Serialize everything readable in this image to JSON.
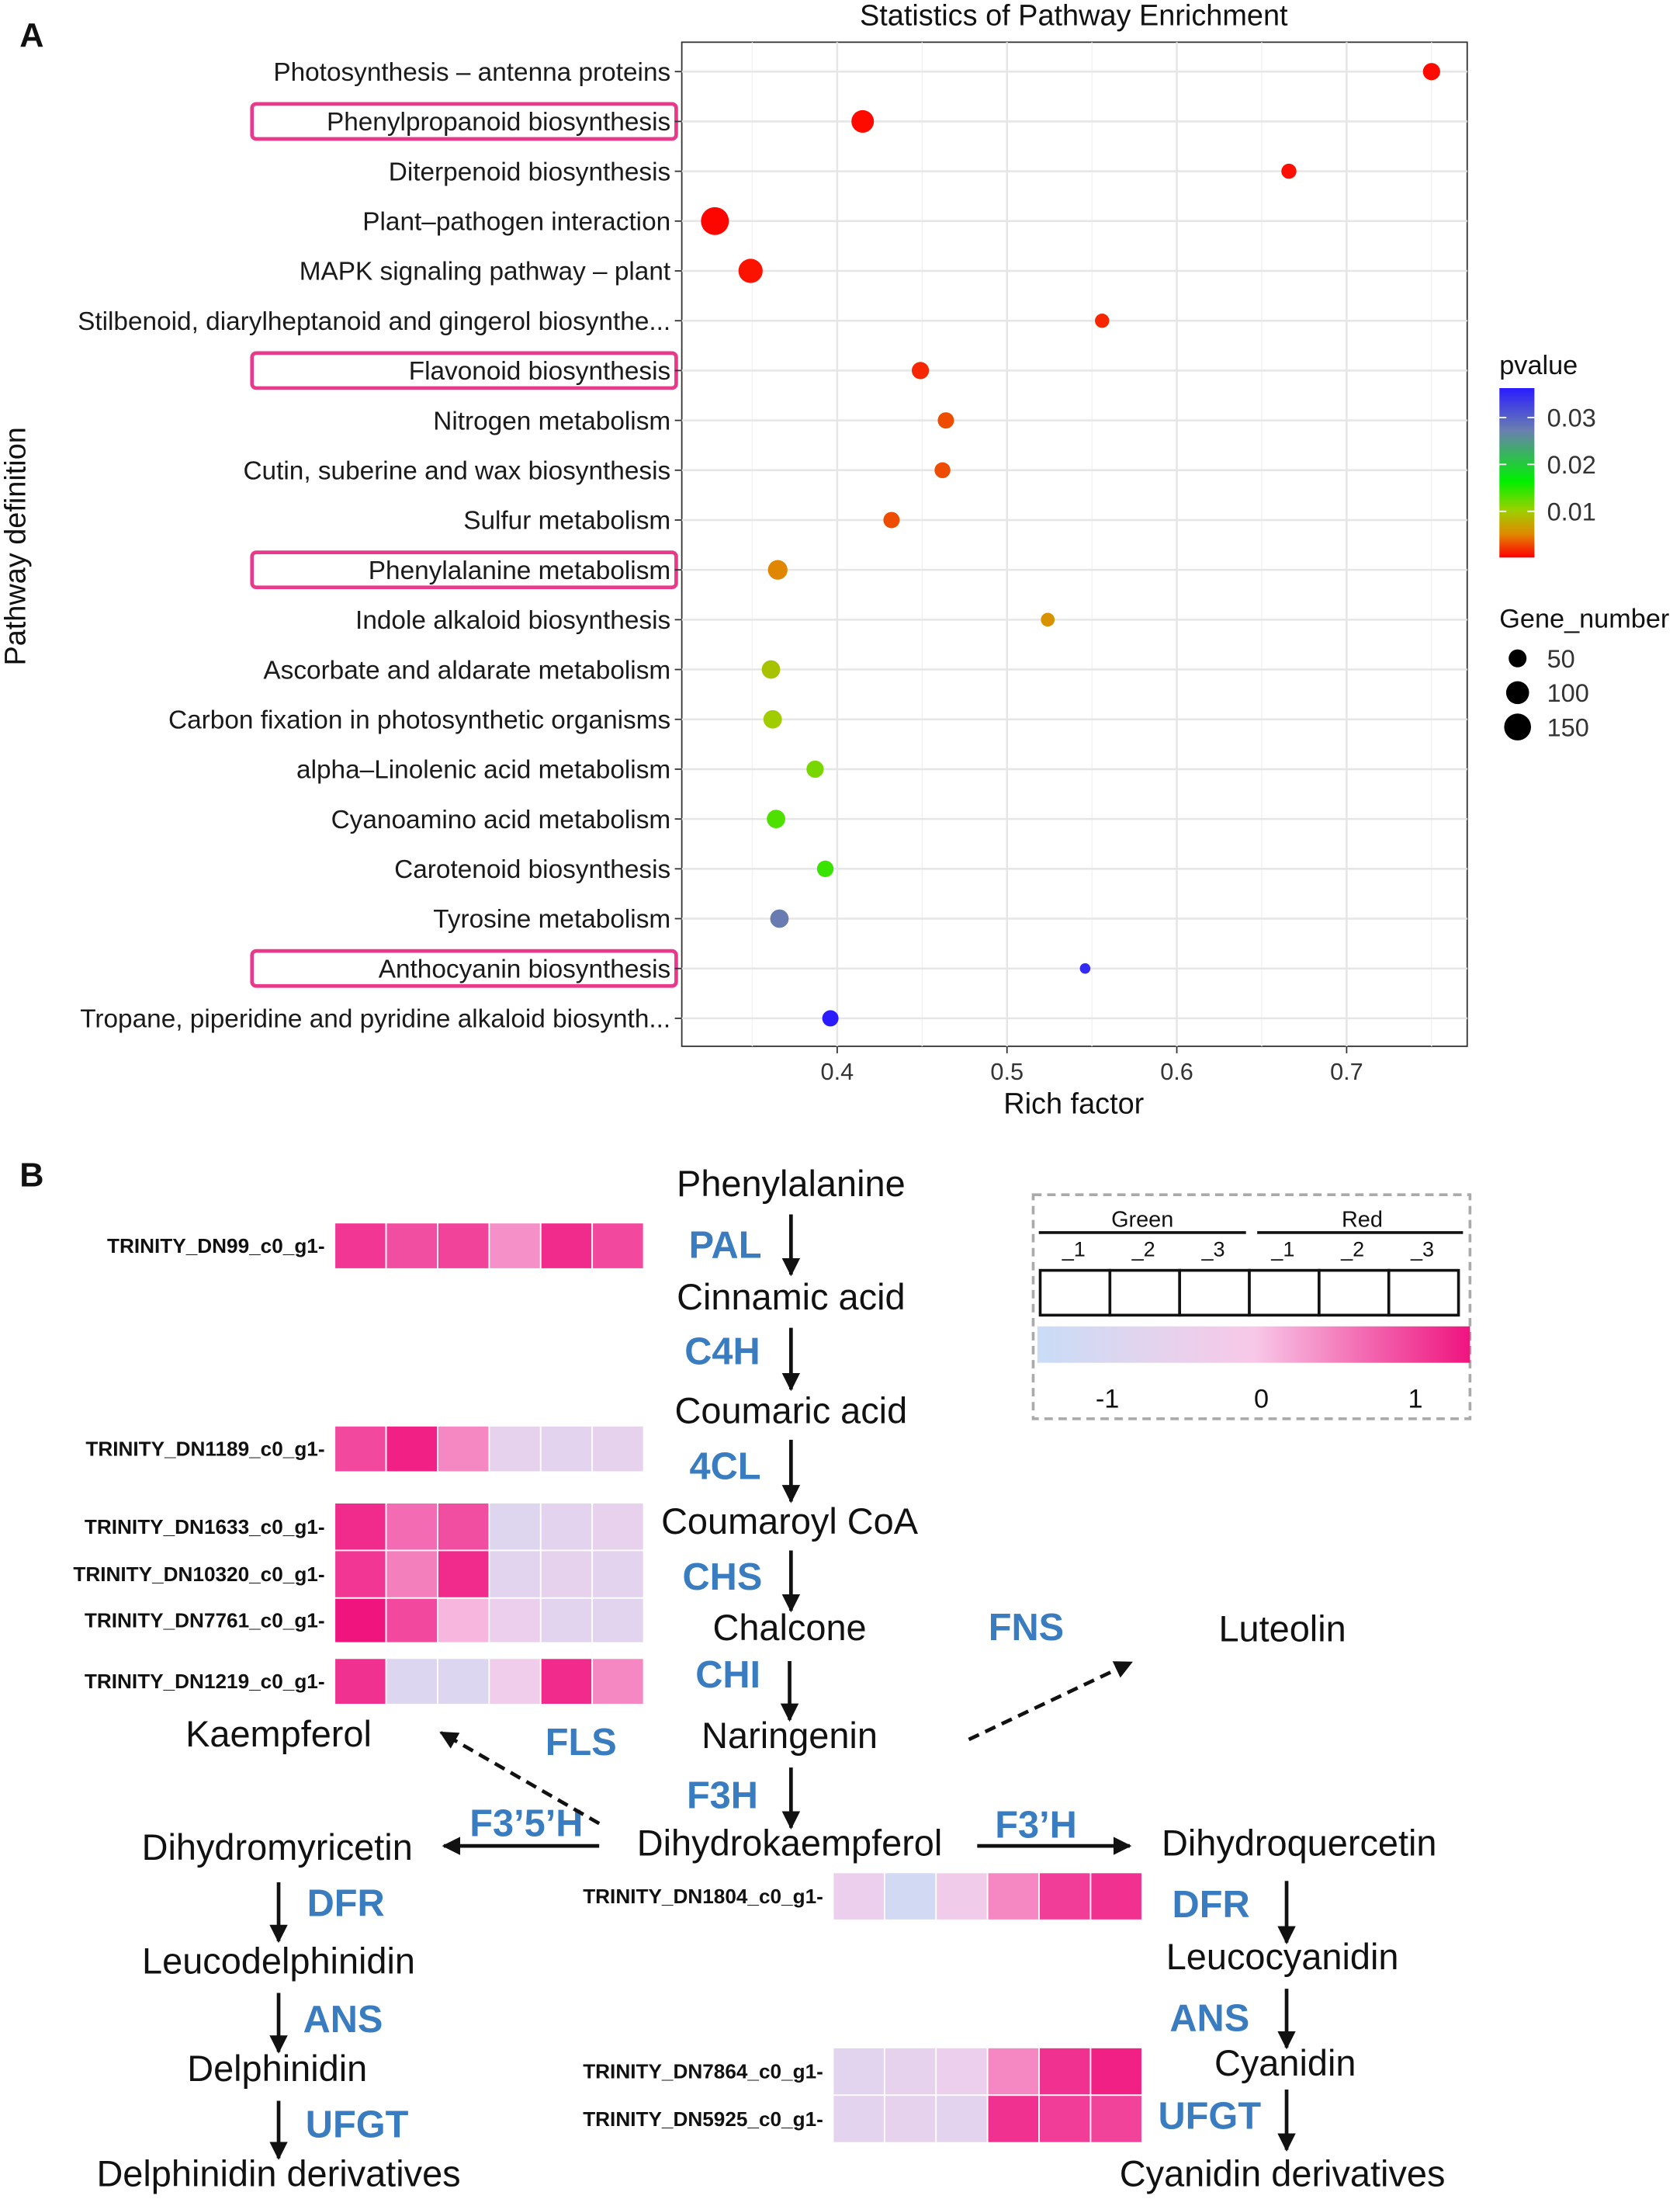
{
  "panel_a_label": "A",
  "panel_b_label": "B",
  "chart_data": {
    "type": "scatter",
    "title": "Statistics of Pathway Enrichment",
    "xlabel": "Rich factor",
    "ylabel": "Pathway definition",
    "xlim": [
      0.3085,
      0.771
    ],
    "xticks": [
      0.4,
      0.5,
      0.6,
      0.7
    ],
    "grid": true,
    "highlighted": [
      "Phenylpropanoid biosynthesis",
      "Flavonoid biosynthesis",
      "Phenylalanine metabolism",
      "Anthocyanin biosynthesis"
    ],
    "highlight_color": "#e8398a",
    "points": [
      {
        "pathway": "Photosynthesis – antenna proteins",
        "rich_factor": 0.75,
        "pvalue": 0.0005,
        "gene_number": 45
      },
      {
        "pathway": "Phenylpropanoid biosynthesis",
        "rich_factor": 0.415,
        "pvalue": 0.0005,
        "gene_number": 95
      },
      {
        "pathway": "Diterpenoid biosynthesis",
        "rich_factor": 0.666,
        "pvalue": 0.0008,
        "gene_number": 30
      },
      {
        "pathway": "Plant–pathogen interaction",
        "rich_factor": 0.328,
        "pvalue": 0.0003,
        "gene_number": 165
      },
      {
        "pathway": "MAPK signaling pathway – plant",
        "rich_factor": 0.349,
        "pvalue": 0.001,
        "gene_number": 115
      },
      {
        "pathway": "Stilbenoid, diarylheptanoid and gingerol biosynthe...",
        "rich_factor": 0.556,
        "pvalue": 0.002,
        "gene_number": 25
      },
      {
        "pathway": "Flavonoid biosynthesis",
        "rich_factor": 0.449,
        "pvalue": 0.002,
        "gene_number": 45
      },
      {
        "pathway": "Nitrogen metabolism",
        "rich_factor": 0.464,
        "pvalue": 0.004,
        "gene_number": 38
      },
      {
        "pathway": "Cutin, suberine and wax biosynthesis",
        "rich_factor": 0.462,
        "pvalue": 0.004,
        "gene_number": 35
      },
      {
        "pathway": "Sulfur metabolism",
        "rich_factor": 0.432,
        "pvalue": 0.004,
        "gene_number": 38
      },
      {
        "pathway": "Phenylalanine metabolism",
        "rich_factor": 0.365,
        "pvalue": 0.007,
        "gene_number": 65
      },
      {
        "pathway": "Indole alkaloid biosynthesis",
        "rich_factor": 0.524,
        "pvalue": 0.008,
        "gene_number": 22
      },
      {
        "pathway": "Ascorbate and aldarate metabolism",
        "rich_factor": 0.361,
        "pvalue": 0.013,
        "gene_number": 55
      },
      {
        "pathway": "Carbon fixation in photosynthetic organisms",
        "rich_factor": 0.362,
        "pvalue": 0.014,
        "gene_number": 55
      },
      {
        "pathway": "alpha–Linolenic acid metabolism",
        "rich_factor": 0.387,
        "pvalue": 0.016,
        "gene_number": 45
      },
      {
        "pathway": "Cyanoamino acid metabolism",
        "rich_factor": 0.364,
        "pvalue": 0.018,
        "gene_number": 55
      },
      {
        "pathway": "Carotenoid biosynthesis",
        "rich_factor": 0.393,
        "pvalue": 0.019,
        "gene_number": 40
      },
      {
        "pathway": "Tyrosine metabolism",
        "rich_factor": 0.366,
        "pvalue": 0.029,
        "gene_number": 55
      },
      {
        "pathway": "Anthocyanin biosynthesis",
        "rich_factor": 0.546,
        "pvalue": 0.035,
        "gene_number": 8
      },
      {
        "pathway": "Tropane, piperidine and pyridine alkaloid biosynth...",
        "rich_factor": 0.396,
        "pvalue": 0.036,
        "gene_number": 38
      }
    ],
    "color_legend": {
      "title": "pvalue",
      "ticks": [
        "0.03",
        "0.02",
        "0.01"
      ],
      "range": [
        0,
        0.036
      ],
      "colors": [
        "#ff0000",
        "#e08a00",
        "#9cd000",
        "#00f000",
        "#6a7fb0",
        "#2a1cff"
      ]
    },
    "size_legend": {
      "title": "Gene_number",
      "values": [
        50,
        100,
        150
      ],
      "labels": [
        "50",
        "100",
        "150"
      ]
    }
  },
  "pathway": {
    "compounds": {
      "phenylalanine": "Phenylalanine",
      "cinnamic": "Cinnamic acid",
      "coumaric": "Coumaric acid",
      "coumaroyl": "Coumaroyl CoA",
      "chalcone": "Chalcone",
      "luteolin": "Luteolin",
      "naringenin": "Naringenin",
      "kaempferol": "Kaempferol",
      "dihydrokaempferol": "Dihydrokaempferol",
      "dihydromyricetin": "Dihydromyricetin",
      "dihydroquercetin": "Dihydroquercetin",
      "leucodelphinidin": "Leucodelphinidin",
      "leucocyanidin": "Leucocyanidin",
      "delphinidin": "Delphinidin",
      "cyanidin": "Cyanidin",
      "delphinidin_derivatives": "Delphinidin derivatives",
      "cyanidin_derivatives": "Cyanidin derivatives"
    },
    "enzymes": {
      "pal": "PAL",
      "c4h": "C4H",
      "4cl": "4CL",
      "chs": "CHS",
      "fns": "FNS",
      "chi": "CHI",
      "fls": "FLS",
      "f3h": "F3H",
      "f35h": "F3’5’H",
      "f3h_prime": "F3’H",
      "dfr_left": "DFR",
      "dfr_right": "DFR",
      "ans_left": "ANS",
      "ans_right": "ANS",
      "ufgt_left": "UFGT",
      "ufgt_right": "UFGT"
    },
    "heatmaps": [
      {
        "gene": "TRINITY_DN99_c0_g1",
        "values": [
          0.9,
          0.7,
          0.8,
          0.3,
          1.0,
          0.75
        ]
      },
      {
        "gene": "TRINITY_DN1189_c0_g1",
        "values": [
          0.75,
          1.1,
          0.35,
          -0.5,
          -0.55,
          -0.5
        ]
      },
      {
        "gene": "TRINITY_DN1633_c0_g1",
        "values": [
          1.0,
          0.5,
          0.7,
          -0.7,
          -0.55,
          -0.45
        ]
      },
      {
        "gene": "TRINITY_DN10320_c0_g1",
        "values": [
          0.9,
          0.4,
          1.0,
          -0.6,
          -0.5,
          -0.55
        ]
      },
      {
        "gene": "TRINITY_DN7761_c0_g1",
        "values": [
          1.2,
          0.75,
          0.1,
          -0.35,
          -0.6,
          -0.6
        ]
      },
      {
        "gene": "TRINITY_DN1219_c0_g1",
        "values": [
          0.95,
          -0.75,
          -0.75,
          -0.25,
          1.0,
          0.35
        ]
      },
      {
        "gene": "TRINITY_DN1804_c0_g1",
        "values": [
          -0.35,
          -1.0,
          -0.2,
          0.35,
          0.85,
          0.95
        ]
      },
      {
        "gene": "TRINITY_DN7864_c0_g1",
        "values": [
          -0.6,
          -0.5,
          -0.35,
          0.35,
          0.95,
          1.1
        ]
      },
      {
        "gene": "TRINITY_DN5925_c0_g1",
        "values": [
          -0.55,
          -0.5,
          -0.55,
          0.95,
          0.85,
          0.8
        ]
      }
    ],
    "legend": {
      "groups": [
        "Green",
        "Red"
      ],
      "samples": [
        "_1",
        "_2",
        "_3",
        "_1",
        "_2",
        "_3"
      ],
      "scale_ticks": [
        "-1",
        "0",
        "1"
      ],
      "scale_colors": [
        "#c9dcf6",
        "#e2d4ee",
        "#f8c8e8",
        "#f25aa8",
        "#f0147e"
      ]
    }
  }
}
